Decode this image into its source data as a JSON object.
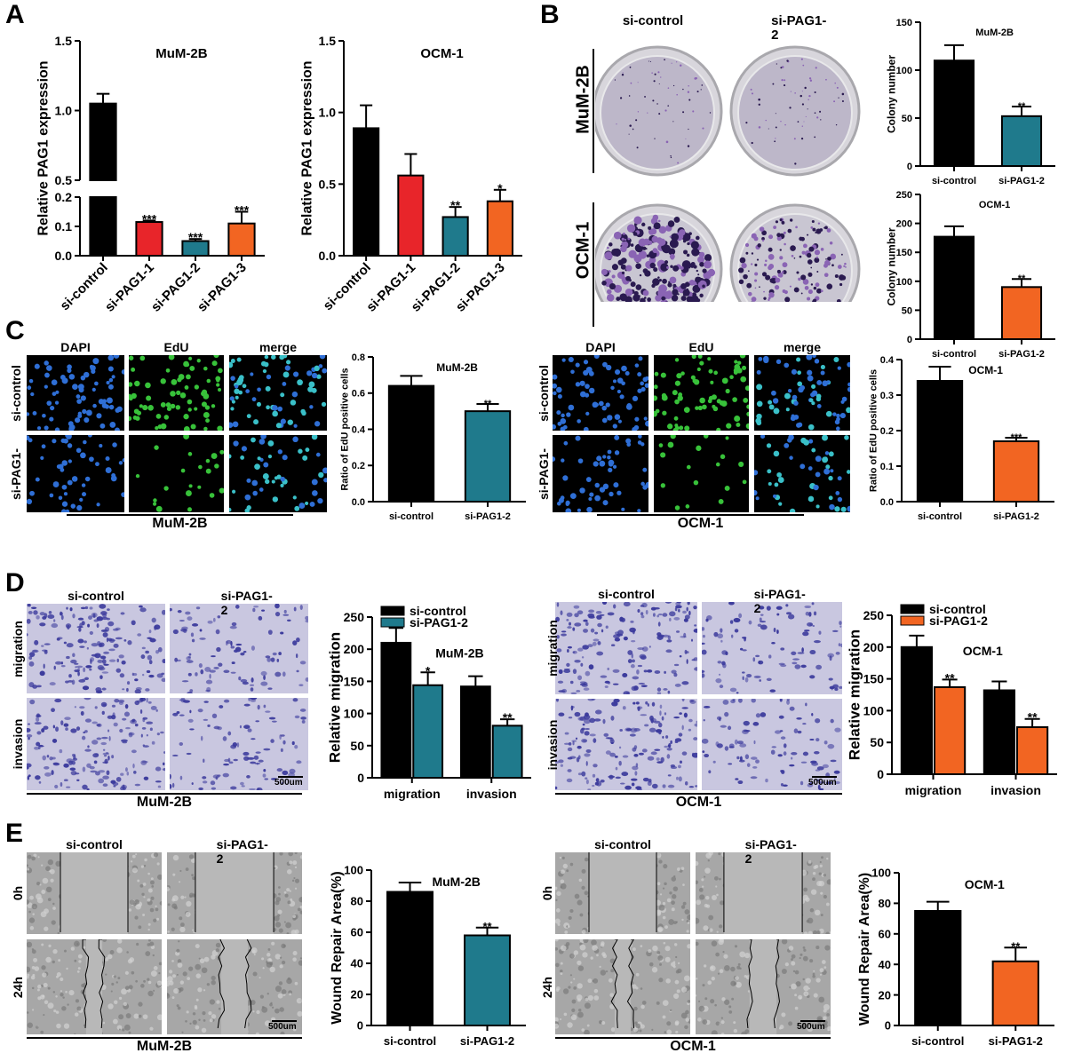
{
  "panel_labels": [
    "A",
    "B",
    "C",
    "D",
    "E"
  ],
  "colors": {
    "black": "#000000",
    "red": "#e8252a",
    "teal": "#1f7a8c",
    "orange": "#f26522"
  },
  "B_images": {
    "col1": "si-control",
    "col2": "si-PAG1-\n2",
    "row1": "MuM-2B",
    "row2": "OCM-1"
  },
  "C_images": {
    "left": {
      "headers": [
        "DAPI",
        "EdU",
        "merge"
      ],
      "rows": [
        "si-control",
        "si-PAG1-"
      ],
      "caption": "MuM-2B"
    },
    "right": {
      "headers": [
        "DAPI",
        "EdU",
        "merge"
      ],
      "rows": [
        "si-control",
        "si-PAG1-"
      ],
      "caption": "OCM-1"
    }
  },
  "D_images": {
    "left": {
      "headers": [
        "si-control",
        "si-PAG1-\n2"
      ],
      "rows": [
        "migration",
        "invasion"
      ],
      "caption": "MuM-2B",
      "scale_bar": "500um"
    },
    "right": {
      "headers": [
        "si-control",
        "si-PAG1-\n2"
      ],
      "rows": [
        "migration",
        "invasion"
      ],
      "caption": "OCM-1",
      "scale_bar": "500um"
    }
  },
  "E_images": {
    "left": {
      "headers": [
        "si-control",
        "si-PAG1-\n2"
      ],
      "rows": [
        "0h",
        "24h"
      ],
      "caption": "MuM-2B",
      "scale_bar": "500um"
    },
    "right": {
      "headers": [
        "si-control",
        "si-PAG1-\n2"
      ],
      "rows": [
        "0h",
        "24h"
      ],
      "caption": "OCM-1",
      "scale_bar": "500um"
    }
  },
  "chart_data": [
    {
      "panel": "A",
      "type": "bar",
      "title": "MuM-2B",
      "ylabel": "Relative  PAG1 expression",
      "categories": [
        "si-control",
        "si-PAG1-1",
        "si-PAG1-2",
        "si-PAG1-3"
      ],
      "axis_break": {
        "lower": [
          0,
          0.2
        ],
        "upper": [
          0.5,
          1.5
        ]
      },
      "yticks": [
        0,
        0.1,
        0.2,
        0.5,
        1.0,
        1.5
      ],
      "ytick_labels": [
        "0.0",
        "0.1",
        "0.2",
        "0.5",
        "1.0",
        "1.5"
      ],
      "series": [
        {
          "values": [
            1.05,
            0.115,
            0.05,
            0.11
          ],
          "errors": [
            0.07,
            0.005,
            0.007,
            0.04
          ],
          "colors": [
            "#000000",
            "#e8252a",
            "#1f7a8c",
            "#f26522"
          ],
          "significance": [
            "",
            "***",
            "***",
            "***"
          ]
        }
      ]
    },
    {
      "panel": "A",
      "type": "bar",
      "title": "OCM-1",
      "ylabel": "Relative  PAG1 expression",
      "categories": [
        "si-control",
        "si-PAG1-1",
        "si-PAG1-2",
        "si-PAG1-3"
      ],
      "ylim": [
        0,
        1.5
      ],
      "yticks": [
        0,
        0.5,
        1.0,
        1.5
      ],
      "ytick_labels": [
        "0.0",
        "0.5",
        "1.0",
        "1.5"
      ],
      "series": [
        {
          "values": [
            0.89,
            0.56,
            0.27,
            0.38
          ],
          "errors": [
            0.16,
            0.15,
            0.07,
            0.08
          ],
          "colors": [
            "#000000",
            "#e8252a",
            "#1f7a8c",
            "#f26522"
          ],
          "significance": [
            "",
            "",
            "**",
            "*"
          ]
        }
      ]
    },
    {
      "panel": "B",
      "type": "bar",
      "title": "MuM-2B",
      "ylabel": "Colony number",
      "categories": [
        "si-control",
        "si-PAG1-2"
      ],
      "ylim": [
        0,
        150
      ],
      "yticks": [
        0,
        50,
        100,
        150
      ],
      "ytick_labels": [
        "0",
        "50",
        "100",
        "150"
      ],
      "series": [
        {
          "values": [
            110,
            52
          ],
          "errors": [
            16,
            10
          ],
          "colors": [
            "#000000",
            "#1f7a8c"
          ],
          "significance": [
            "",
            "**"
          ]
        }
      ]
    },
    {
      "panel": "B",
      "type": "bar",
      "title": "OCM-1",
      "ylabel": "Colony number",
      "categories": [
        "si-control",
        "si-PAG1-2"
      ],
      "ylim": [
        0,
        250
      ],
      "yticks": [
        0,
        50,
        100,
        150,
        200,
        250
      ],
      "ytick_labels": [
        "0",
        "50",
        "100",
        "150",
        "200",
        "250"
      ],
      "series": [
        {
          "values": [
            177,
            90
          ],
          "errors": [
            18,
            14
          ],
          "colors": [
            "#000000",
            "#f26522"
          ],
          "significance": [
            "",
            "**"
          ]
        }
      ]
    },
    {
      "panel": "C",
      "type": "bar",
      "title": "MuM-2B",
      "ylabel": "Ratio of EdU positive cells",
      "categories": [
        "si-control",
        "si-PAG1-2"
      ],
      "ylim": [
        0,
        0.8
      ],
      "yticks": [
        0,
        0.2,
        0.4,
        0.6,
        0.8
      ],
      "ytick_labels": [
        "0.0",
        "0.2",
        "0.4",
        "0.6",
        "0.8"
      ],
      "series": [
        {
          "values": [
            0.64,
            0.5
          ],
          "errors": [
            0.055,
            0.04
          ],
          "colors": [
            "#000000",
            "#1f7a8c"
          ],
          "significance": [
            "",
            "**"
          ]
        }
      ]
    },
    {
      "panel": "C",
      "type": "bar",
      "title": "OCM-1",
      "ylabel": "Ratio of EdU positive cells",
      "categories": [
        "si-control",
        "si-PAG1-2"
      ],
      "ylim": [
        0,
        0.4
      ],
      "yticks": [
        0,
        0.1,
        0.2,
        0.3,
        0.4
      ],
      "ytick_labels": [
        "0.0",
        "0.1",
        "0.2",
        "0.3",
        "0.4"
      ],
      "series": [
        {
          "values": [
            0.34,
            0.17
          ],
          "errors": [
            0.04,
            0.01
          ],
          "colors": [
            "#000000",
            "#f26522"
          ],
          "significance": [
            "",
            "***"
          ]
        }
      ]
    },
    {
      "panel": "D",
      "type": "bar",
      "title": "MuM-2B",
      "ylabel": "Relative migration",
      "categories": [
        "migration",
        "invasion"
      ],
      "ylim": [
        0,
        250
      ],
      "yticks": [
        0,
        50,
        100,
        150,
        200,
        250
      ],
      "ytick_labels": [
        "0",
        "50",
        "100",
        "150",
        "200",
        "250"
      ],
      "legend": "top-left",
      "series": [
        {
          "name": "si-control",
          "color": "#000000",
          "values": [
            210,
            142
          ],
          "errors": [
            23,
            16
          ],
          "significance": [
            "",
            ""
          ]
        },
        {
          "name": "si-PAG1-2",
          "color": "#1f7a8c",
          "values": [
            144,
            81
          ],
          "errors": [
            20,
            10
          ],
          "significance": [
            "*",
            "**"
          ]
        }
      ]
    },
    {
      "panel": "D",
      "type": "bar",
      "title": "OCM-1",
      "ylabel": "Relative migration",
      "categories": [
        "migration",
        "invasion"
      ],
      "ylim": [
        0,
        250
      ],
      "yticks": [
        0,
        50,
        100,
        150,
        200,
        250
      ],
      "ytick_labels": [
        "0",
        "50",
        "100",
        "150",
        "200",
        "250"
      ],
      "legend": "top-left",
      "series": [
        {
          "name": "si-control",
          "color": "#000000",
          "values": [
            200,
            132
          ],
          "errors": [
            18,
            14
          ],
          "significance": [
            "",
            ""
          ]
        },
        {
          "name": "si-PAG1-2",
          "color": "#f26522",
          "values": [
            137,
            74
          ],
          "errors": [
            12,
            13
          ],
          "significance": [
            "**",
            "**"
          ]
        }
      ]
    },
    {
      "panel": "E",
      "type": "bar",
      "title": "MuM-2B",
      "ylabel": "Wound Repair Area(%)",
      "categories": [
        "si-control",
        "si-PAG1-2"
      ],
      "ylim": [
        0,
        100
      ],
      "yticks": [
        0,
        20,
        40,
        60,
        80,
        100
      ],
      "ytick_labels": [
        "0",
        "20",
        "40",
        "60",
        "80",
        "100"
      ],
      "series": [
        {
          "values": [
            86,
            58
          ],
          "errors": [
            6,
            5
          ],
          "colors": [
            "#000000",
            "#1f7a8c"
          ],
          "significance": [
            "",
            "**"
          ]
        }
      ]
    },
    {
      "panel": "E",
      "type": "bar",
      "title": "OCM-1",
      "ylabel": "Wound Repair Area(%)",
      "categories": [
        "si-control",
        "si-PAG1-2"
      ],
      "ylim": [
        0,
        100
      ],
      "yticks": [
        0,
        20,
        40,
        60,
        80,
        100
      ],
      "ytick_labels": [
        "0",
        "20",
        "40",
        "60",
        "80",
        "100"
      ],
      "series": [
        {
          "values": [
            75,
            42
          ],
          "errors": [
            6,
            9
          ],
          "colors": [
            "#000000",
            "#f26522"
          ],
          "significance": [
            "",
            "**"
          ]
        }
      ]
    }
  ]
}
